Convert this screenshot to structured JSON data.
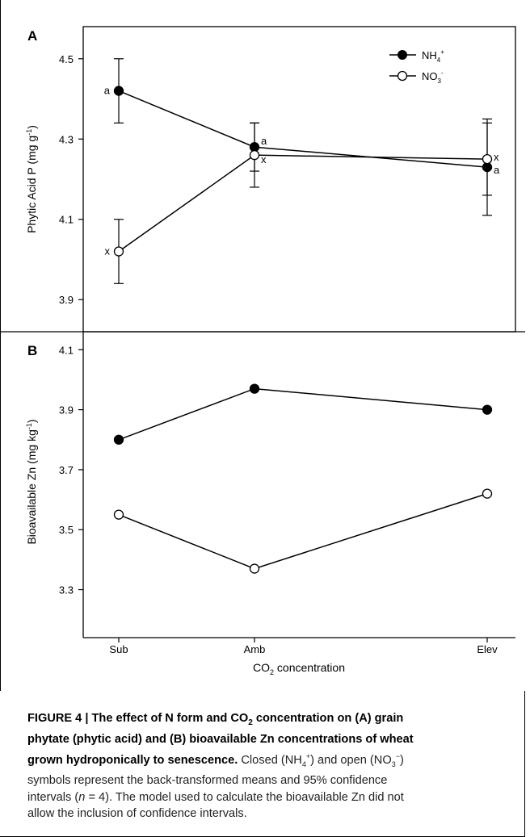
{
  "chart_data": [
    {
      "panel": "A",
      "type": "line",
      "ylabel": "Phytic Acid P (mg g-1)",
      "ylabel_main": "Phytic Acid P (mg g",
      "ylabel_sup": "-1",
      "ylabel_end": ")",
      "categories": [
        "Sub",
        "Amb",
        "Elev"
      ],
      "ylim": [
        3.82,
        4.58
      ],
      "yticks": [
        "3.9",
        "4.1",
        "4.3",
        "4.5"
      ],
      "yticks_values": [
        3.9,
        4.1,
        4.3,
        4.5
      ],
      "series": [
        {
          "name": "NH4+",
          "name_base": "NH",
          "name_sub": "4",
          "name_sup": "+",
          "marker": "filled",
          "values": [
            4.42,
            4.28,
            4.23
          ],
          "ci_low": [
            4.34,
            4.22,
            4.11
          ],
          "ci_high": [
            4.5,
            4.34,
            4.35
          ],
          "letters": [
            "a",
            "a",
            "a"
          ]
        },
        {
          "name": "NO3-",
          "name_base": "NO",
          "name_sub": "3",
          "name_sup": "-",
          "marker": "open",
          "values": [
            4.02,
            4.26,
            4.25
          ],
          "ci_low": [
            3.94,
            4.18,
            4.16
          ],
          "ci_high": [
            4.1,
            4.34,
            4.34
          ],
          "letters": [
            "x",
            "x",
            "x"
          ]
        }
      ]
    },
    {
      "panel": "B",
      "type": "line",
      "ylabel": "Bioavailable Zn (mg kg-1)",
      "ylabel_main": "Bioavailable Zn (mg kg",
      "ylabel_sup": "-1",
      "ylabel_end": ")",
      "xlabel": "CO2 concentration",
      "xlabel_a": "CO",
      "xlabel_sub": "2",
      "xlabel_b": " concentration",
      "categories": [
        "Sub",
        "Amb",
        "Elev"
      ],
      "ylim": [
        3.14,
        4.16
      ],
      "yticks": [
        "3.3",
        "3.5",
        "3.7",
        "3.9",
        "4.1"
      ],
      "yticks_values": [
        3.3,
        3.5,
        3.7,
        3.9,
        4.1
      ],
      "series": [
        {
          "name": "NH4+",
          "marker": "filled",
          "values": [
            3.8,
            3.97,
            3.9
          ]
        },
        {
          "name": "NO3-",
          "marker": "open",
          "values": [
            3.55,
            3.37,
            3.62
          ]
        }
      ]
    }
  ],
  "caption": {
    "label": "FIGURE 4 | ",
    "title_l1": "The effect of N form and CO",
    "title_l1_sub": "2",
    "title_l1_end": " concentration on (A) grain",
    "title_l2": "phytate (phytic acid) and (B) bioavailable Zn concentrations of wheat",
    "title_l3": "grown hydroponically to senescence.",
    "body_l3_a": " Closed (NH",
    "body_l3_sub": "4",
    "body_l3_sup": "+",
    "body_l3_b": ") and open (NO",
    "body_l3_sub2": "3",
    "body_l3_sup2": "−",
    "body_l3_c": ")",
    "body_l4": "symbols represent the back-transformed means and 95% confidence",
    "body_l5_a": "intervals (",
    "body_l5_n": "n",
    "body_l5_b": " = 4). The model used to calculate the bioavailable Zn did not",
    "body_l6": "allow the inclusion of confidence intervals."
  }
}
